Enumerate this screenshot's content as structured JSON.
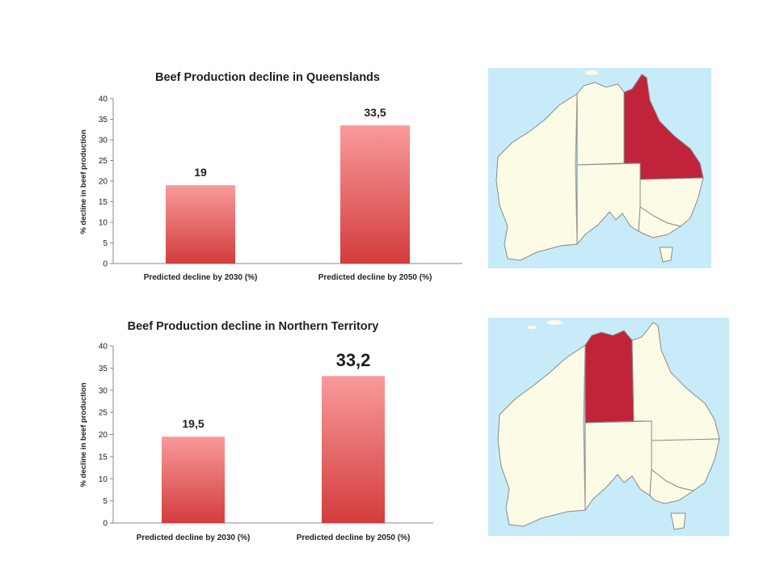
{
  "chart_data": [
    {
      "type": "bar",
      "title": "Beef Production decline in Queenslands",
      "categories": [
        "Predicted decline by 2030 (%)",
        "Predicted decline by 2050 (%)"
      ],
      "values": [
        19,
        33.5
      ],
      "data_labels": [
        "19",
        "33,5"
      ],
      "ylabel": "% decline in beef production",
      "xlabel": "",
      "ylim": [
        0,
        40
      ],
      "yticks": [
        "0",
        "5",
        "10",
        "15",
        "20",
        "25",
        "30",
        "35",
        "40"
      ],
      "grid": false,
      "bar_color_top": "#f99a9a",
      "bar_color_bottom": "#d33c3c",
      "highlight_region": "Queensland"
    },
    {
      "type": "bar",
      "title": "Beef Production decline in Northern Territory",
      "categories": [
        "Predicted decline by 2030 (%)",
        "Predicted decline by 2050 (%)"
      ],
      "values": [
        19.5,
        33.2
      ],
      "data_labels": [
        "19,5",
        "33,2"
      ],
      "ylabel": "% decline in beef production",
      "xlabel": "",
      "ylim": [
        0,
        40
      ],
      "yticks": [
        "0",
        "5",
        "10",
        "15",
        "20",
        "25",
        "30",
        "35",
        "40"
      ],
      "grid": false,
      "bar_color_top": "#f99a9a",
      "bar_color_bottom": "#d33c3c",
      "highlight_region": "Northern Territory"
    }
  ],
  "maps": {
    "ocean_color": "#c8ebfa",
    "land_color": "#fcfbe6",
    "highlight_color": "#c0243a",
    "border_color": "#8a8a8a"
  }
}
